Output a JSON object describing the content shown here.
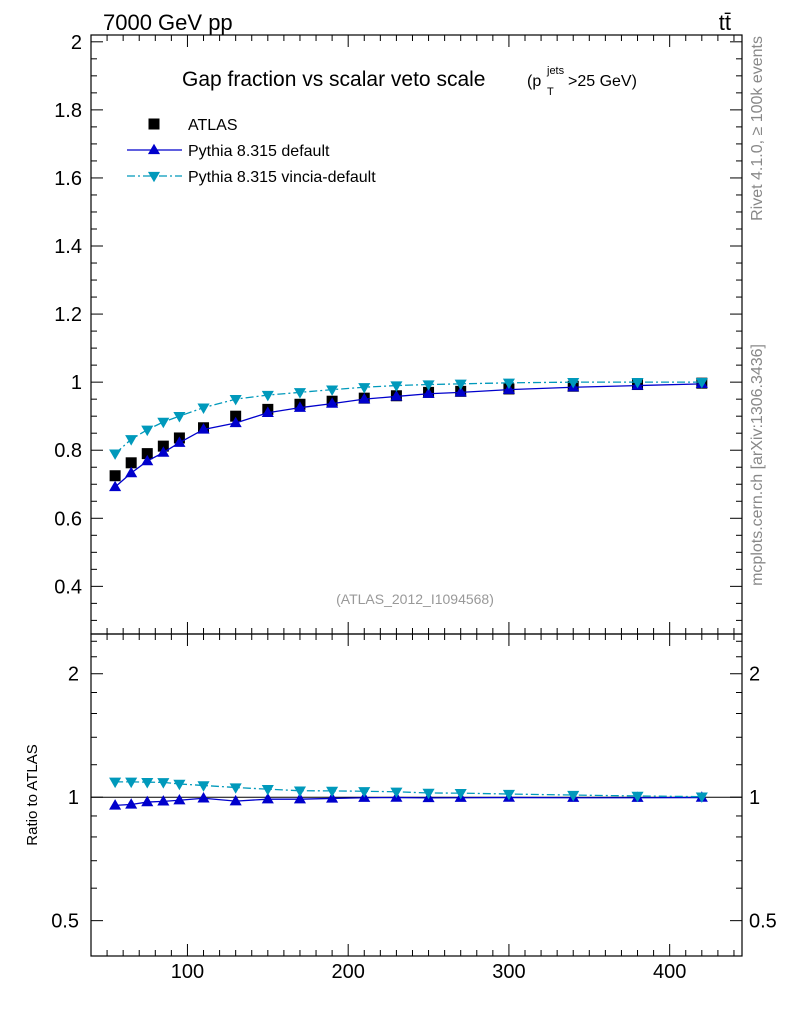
{
  "header": {
    "left": "7000 GeV pp",
    "right": "tt̄"
  },
  "side_text": {
    "rivet": "Rivet 4.1.0, ≥ 100k events",
    "mcplots": "mcplots.cern.ch [arXiv:1306.3436]"
  },
  "colors": {
    "atlas": "#000000",
    "default": "#0000cc",
    "vincia": "#0099bb",
    "watermark": "#999999",
    "side": "#888888"
  },
  "chart_data": {
    "type": "scatter",
    "title_main": "Gap fraction vs scalar veto scale",
    "title_paren_open": "(p",
    "title_sup": "jets",
    "title_sub": "T",
    "title_rest": ">25 GeV)",
    "watermark": "(ATLAS_2012_I1094568)",
    "xlim": [
      40,
      445
    ],
    "upper": {
      "ylim": [
        0.26,
        2.02
      ],
      "yticks": [
        {
          "v": 0.4,
          "label": "0.4"
        },
        {
          "v": 0.6,
          "label": "0.6"
        },
        {
          "v": 0.8,
          "label": "0.8"
        },
        {
          "v": 1.0,
          "label": "1"
        },
        {
          "v": 1.2,
          "label": "1.2"
        },
        {
          "v": 1.4,
          "label": "1.4"
        },
        {
          "v": 1.6,
          "label": "1.6"
        },
        {
          "v": 1.8,
          "label": "1.8"
        },
        {
          "v": 2.0,
          "label": "2"
        }
      ]
    },
    "lower": {
      "ylabel": "Ratio to ATLAS",
      "ylim": [
        0.41,
        2.5
      ],
      "yticks": [
        {
          "v": 0.5,
          "label": "0.5"
        },
        {
          "v": 1.0,
          "label": "1"
        },
        {
          "v": 2.0,
          "label": "2"
        }
      ]
    },
    "xticks": [
      {
        "v": 100,
        "label": "100"
      },
      {
        "v": 200,
        "label": "200"
      },
      {
        "v": 300,
        "label": "300"
      },
      {
        "v": 400,
        "label": "400"
      }
    ],
    "x": [
      55,
      65,
      75,
      85,
      95,
      110,
      130,
      150,
      170,
      190,
      210,
      230,
      250,
      270,
      300,
      340,
      380,
      420
    ],
    "series": [
      {
        "name": "ATLAS",
        "marker": "square",
        "values": [
          0.725,
          0.763,
          0.79,
          0.812,
          0.836,
          0.866,
          0.9,
          0.92,
          0.935,
          0.944,
          0.953,
          0.96,
          0.97,
          0.973,
          0.98,
          0.988,
          0.993,
          0.997
        ],
        "ratio": [
          1,
          1,
          1,
          1,
          1,
          1,
          1,
          1,
          1,
          1,
          1,
          1,
          1,
          1,
          1,
          1,
          1,
          1
        ]
      },
      {
        "name": "Pythia 8.315 default",
        "marker": "triangle-up",
        "line": "solid",
        "values": [
          0.692,
          0.733,
          0.768,
          0.793,
          0.822,
          0.861,
          0.88,
          0.91,
          0.925,
          0.937,
          0.95,
          0.958,
          0.966,
          0.97,
          0.978,
          0.985,
          0.99,
          0.995
        ],
        "ratio": [
          0.955,
          0.96,
          0.973,
          0.977,
          0.983,
          0.994,
          0.978,
          0.989,
          0.989,
          0.993,
          0.997,
          0.998,
          0.996,
          0.997,
          0.998,
          0.997,
          0.997,
          0.998
        ]
      },
      {
        "name": "Pythia 8.315 vincia-default",
        "marker": "triangle-down",
        "line": "dashdot",
        "values": [
          0.79,
          0.832,
          0.86,
          0.883,
          0.9,
          0.925,
          0.95,
          0.962,
          0.97,
          0.978,
          0.985,
          0.99,
          0.993,
          0.995,
          0.998,
          1.0,
          1.0,
          1.0
        ],
        "ratio": [
          1.09,
          1.09,
          1.088,
          1.087,
          1.077,
          1.068,
          1.056,
          1.046,
          1.037,
          1.036,
          1.034,
          1.031,
          1.024,
          1.023,
          1.018,
          1.012,
          1.007,
          1.003
        ]
      }
    ]
  }
}
